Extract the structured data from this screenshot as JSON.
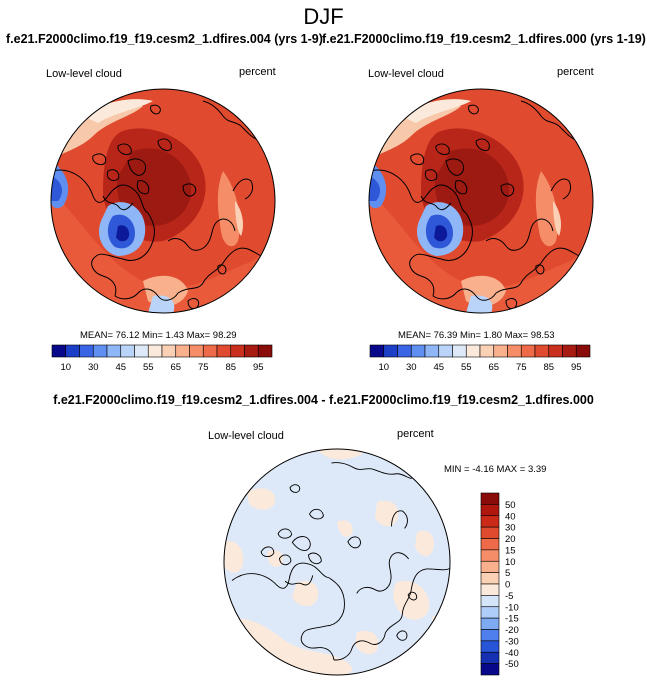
{
  "main_title": "DJF",
  "panels": [
    {
      "run_title": "f.e21.F2000climo.f19_f19.cesm2_1.dfires.004 (yrs 1-9)",
      "variable": "Low-level cloud",
      "units": "percent",
      "stats": "MEAN=  76.12  Min=   1.43  Max=  98.29"
    },
    {
      "run_title": "f.e21.F2000climo.f19_f19.cesm2_1.dfires.000 (yrs 1-19)",
      "variable": "Low-level cloud",
      "units": "percent",
      "stats": "MEAN=  76.39  Min=   1.80  Max=  98.53"
    }
  ],
  "abs_colorbar": {
    "labels": [
      "10",
      "30",
      "45",
      "55",
      "65",
      "75",
      "85",
      "95"
    ],
    "colors": [
      "#08088a",
      "#1c3fc8",
      "#3a64e6",
      "#5f8ff0",
      "#8fb6f6",
      "#b9d4f8",
      "#dde9f8",
      "#fbeadc",
      "#fbd1b6",
      "#f9b08c",
      "#f58e68",
      "#ef6a48",
      "#e04a2f",
      "#c8301d",
      "#a81b12",
      "#8a0c0a"
    ]
  },
  "diff": {
    "title": "f.e21.F2000climo.f19_f19.cesm2_1.dfires.004 - f.e21.F2000climo.f19_f19.cesm2_1.dfires.000",
    "variable": "Low-level cloud",
    "units": "percent",
    "stats": "MIN = -4.16 MAX =  3.39",
    "colorbar_labels": [
      "50",
      "40",
      "30",
      "20",
      "15",
      "10",
      "5",
      "0",
      "-5",
      "-10",
      "-15",
      "-20",
      "-30",
      "-40",
      "-50"
    ],
    "colorbar_colors": [
      "#8a0c0a",
      "#b0180f",
      "#cc2a18",
      "#e04a2f",
      "#ee6a48",
      "#f58e68",
      "#f9b08c",
      "#fbd1b6",
      "#fbeadc",
      "#d6e6fa",
      "#aecdf8",
      "#7eaaf2",
      "#4f7fec",
      "#2855d8",
      "#1530b0",
      "#08088a"
    ]
  }
}
